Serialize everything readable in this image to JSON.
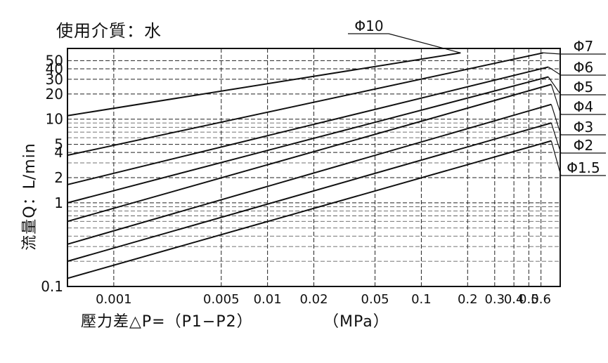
{
  "title": "使用介質：水",
  "chart_data": {
    "type": "line",
    "title": "使用介質：水",
    "xlabel": "壓力差△P=（P1−P2）",
    "xunit": "（MPa）",
    "ylabel": "流量Q：L/min",
    "x_scale": "log",
    "y_scale": "log",
    "xlim": [
      0.0005,
      0.8
    ],
    "ylim": [
      0.1,
      70
    ],
    "x_ticks": [
      0.001,
      0.005,
      0.01,
      0.02,
      0.05,
      0.1,
      0.2,
      0.3,
      0.4,
      0.5,
      0.6
    ],
    "x_tick_labels": [
      "0.001",
      "0.005",
      "0.01",
      "0.02",
      "0.05",
      "0.1",
      "0.2",
      "0.3",
      "0.4",
      "0.5",
      "0.6"
    ],
    "y_ticks": [
      0.1,
      1,
      2,
      4,
      5,
      10,
      20,
      30,
      40,
      50
    ],
    "y_tick_labels": [
      "0.1",
      "1",
      "2",
      "4",
      "5",
      "10",
      "20",
      "30",
      "40",
      "50"
    ],
    "grid": true,
    "series": [
      {
        "name": "Φ10",
        "x": [
          0.0005,
          0.18
        ],
        "y": [
          11,
          62
        ]
      },
      {
        "name": "Φ7",
        "x": [
          0.0005,
          0.62
        ],
        "y": [
          3.7,
          62
        ]
      },
      {
        "name": "Φ6",
        "x": [
          0.0005,
          0.67
        ],
        "y": [
          1.65,
          42
        ]
      },
      {
        "name": "Φ5",
        "x": [
          0.0005,
          0.67
        ],
        "y": [
          1.0,
          32
        ]
      },
      {
        "name": "Φ4",
        "x": [
          0.0005,
          0.7
        ],
        "y": [
          0.6,
          26
        ]
      },
      {
        "name": "Φ3",
        "x": [
          0.0005,
          0.7
        ],
        "y": [
          0.32,
          15
        ]
      },
      {
        "name": "Φ2",
        "x": [
          0.0005,
          0.7
        ],
        "y": [
          0.2,
          9
        ]
      },
      {
        "name": "Φ1.5",
        "x": [
          0.0005,
          0.7
        ],
        "y": [
          0.125,
          5.5
        ]
      }
    ]
  }
}
